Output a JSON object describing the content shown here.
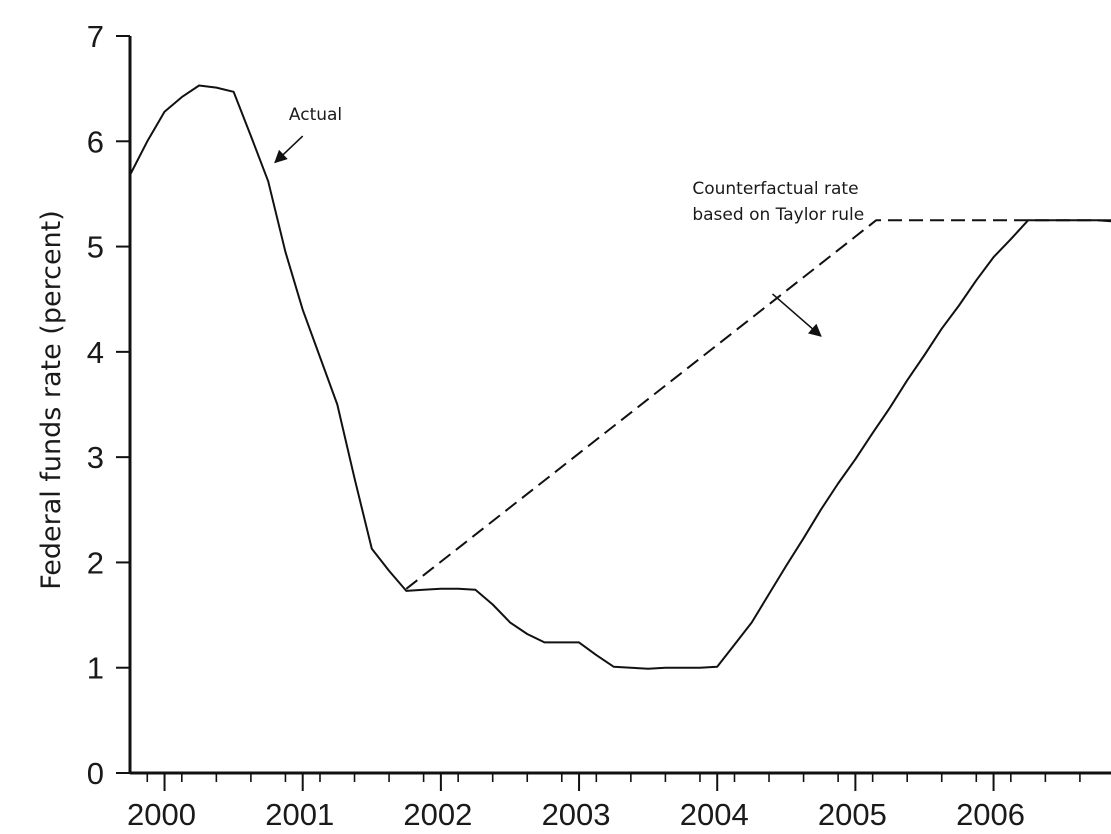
{
  "chart_data": {
    "type": "line",
    "title": "",
    "xlabel": "",
    "ylabel": "Federal funds rate (percent)",
    "xlim": [
      1999.75,
      2006.85
    ],
    "ylim": [
      0,
      7
    ],
    "grid": false,
    "x_tick_labels": [
      {
        "x": 2000.0,
        "label": "2000"
      },
      {
        "x": 2001.0,
        "label": "2001"
      },
      {
        "x": 2002.0,
        "label": "2002"
      },
      {
        "x": 2003.0,
        "label": "2003"
      },
      {
        "x": 2004.0,
        "label": "2004"
      },
      {
        "x": 2005.0,
        "label": "2005"
      },
      {
        "x": 2006.0,
        "label": "2006"
      }
    ],
    "x_minor_ticks": [
      1999.875,
      2000.125,
      2000.375,
      2000.625,
      2000.875,
      2001.125,
      2001.375,
      2001.625,
      2001.875,
      2002.125,
      2002.375,
      2002.625,
      2002.875,
      2003.125,
      2003.375,
      2003.625,
      2003.875,
      2004.125,
      2004.375,
      2004.625,
      2004.875,
      2005.125,
      2005.375,
      2005.625,
      2005.875,
      2006.125,
      2006.375,
      2006.625
    ],
    "y_ticks": [
      0,
      1,
      2,
      3,
      4,
      5,
      6,
      7
    ],
    "series": [
      {
        "name": "Actual",
        "style": "solid",
        "color": "#111111",
        "points": [
          [
            1999.75,
            5.68
          ],
          [
            1999.875,
            6.0
          ],
          [
            2000.0,
            6.28
          ],
          [
            2000.125,
            6.42
          ],
          [
            2000.25,
            6.53
          ],
          [
            2000.375,
            6.51
          ],
          [
            2000.5,
            6.47
          ],
          [
            2000.625,
            6.05
          ],
          [
            2000.75,
            5.62
          ],
          [
            2000.875,
            4.95
          ],
          [
            2001.0,
            4.4
          ],
          [
            2001.125,
            3.95
          ],
          [
            2001.25,
            3.5
          ],
          [
            2001.375,
            2.8
          ],
          [
            2001.5,
            2.13
          ],
          [
            2001.625,
            1.92
          ],
          [
            2001.75,
            1.73
          ],
          [
            2001.875,
            1.74
          ],
          [
            2002.0,
            1.75
          ],
          [
            2002.125,
            1.75
          ],
          [
            2002.25,
            1.74
          ],
          [
            2002.375,
            1.6
          ],
          [
            2002.5,
            1.43
          ],
          [
            2002.625,
            1.32
          ],
          [
            2002.75,
            1.24
          ],
          [
            2002.875,
            1.24
          ],
          [
            2003.0,
            1.24
          ],
          [
            2003.125,
            1.12
          ],
          [
            2003.25,
            1.01
          ],
          [
            2003.375,
            1.0
          ],
          [
            2003.5,
            0.99
          ],
          [
            2003.625,
            1.0
          ],
          [
            2003.75,
            1.0
          ],
          [
            2003.875,
            1.0
          ],
          [
            2004.0,
            1.01
          ],
          [
            2004.125,
            1.22
          ],
          [
            2004.25,
            1.43
          ],
          [
            2004.375,
            1.7
          ],
          [
            2004.5,
            1.97
          ],
          [
            2004.625,
            2.23
          ],
          [
            2004.75,
            2.5
          ],
          [
            2004.875,
            2.75
          ],
          [
            2005.0,
            2.98
          ],
          [
            2005.125,
            3.23
          ],
          [
            2005.25,
            3.47
          ],
          [
            2005.375,
            3.73
          ],
          [
            2005.5,
            3.97
          ],
          [
            2005.625,
            4.22
          ],
          [
            2005.75,
            4.44
          ],
          [
            2005.875,
            4.68
          ],
          [
            2006.0,
            4.9
          ],
          [
            2006.125,
            5.07
          ],
          [
            2006.25,
            5.25
          ],
          [
            2006.375,
            5.25
          ],
          [
            2006.5,
            5.25
          ],
          [
            2006.625,
            5.25
          ],
          [
            2006.75,
            5.25
          ],
          [
            2006.85,
            5.24
          ]
        ]
      },
      {
        "name": "Counterfactual rate based on Taylor rule",
        "style": "dashed",
        "color": "#111111",
        "points": [
          [
            2001.75,
            1.75
          ],
          [
            2005.15,
            5.25
          ],
          [
            2006.85,
            5.25
          ]
        ]
      }
    ],
    "annotations": [
      {
        "lines": [
          "Actual"
        ],
        "text_x": 2000.9,
        "text_y": 6.2,
        "arrow_from": [
          2001.0,
          6.05
        ],
        "arrow_to": [
          2000.8,
          5.8
        ]
      },
      {
        "lines": [
          "Counterfactual rate",
          "based on Taylor rule"
        ],
        "text_x": 2003.82,
        "text_y": 5.5,
        "arrow_from": [
          2004.4,
          4.55
        ],
        "arrow_to": [
          2004.75,
          4.15
        ]
      }
    ]
  }
}
